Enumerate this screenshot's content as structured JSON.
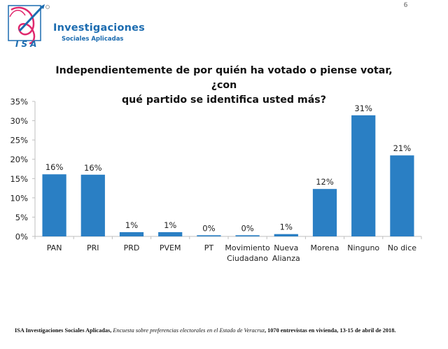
{
  "page_number": "6",
  "logo": {
    "abbreviation": "ISA",
    "name_line1": "Investigaciones",
    "name_line2": "Sociales Aplicadas",
    "registered_mark": "®"
  },
  "footer": {
    "org": "ISA Investigaciones Sociales Aplicadas,",
    "survey_title": "Encuesta sobre preferencias electorales en el Estado de Veracruz",
    "details": ", 1070 entrevistas en vivienda, 13-15 de abril de 2018."
  },
  "colors": {
    "bar": "#2a7fc4",
    "axis": "#bfbfbf",
    "brand_blue": "#1c6cb0",
    "brand_pink": "#e0286e"
  },
  "chart_data": {
    "type": "bar",
    "title": "Independientemente de por quién ha votado o piense votar, ¿con qué partido se identifica usted más?",
    "title_lines": [
      "Independientemente de por quién ha votado o piense votar, ¿con",
      "qué partido se identifica usted más?"
    ],
    "categories": [
      "PAN",
      "PRI",
      "PRD",
      "PVEM",
      "PT",
      "Movimiento Ciudadano",
      "Nueva Alianza",
      "Morena",
      "Ninguno",
      "No dice"
    ],
    "category_lines": [
      [
        "PAN"
      ],
      [
        "PRI"
      ],
      [
        "PRD"
      ],
      [
        "PVEM"
      ],
      [
        "PT"
      ],
      [
        "Movimiento",
        "Ciudadano"
      ],
      [
        "Nueva",
        "Alianza"
      ],
      [
        "Morena"
      ],
      [
        "Ninguno"
      ],
      [
        "No dice"
      ]
    ],
    "values": [
      16.1,
      16.0,
      1.1,
      1.1,
      0.3,
      0.3,
      0.6,
      12.3,
      31.4,
      21.0
    ],
    "data_labels": [
      "16%",
      "16%",
      "1%",
      "1%",
      "0%",
      "0%",
      "1%",
      "12%",
      "31%",
      "21%"
    ],
    "xlabel": "",
    "ylabel": "",
    "ylim": [
      0,
      35
    ],
    "yticks": [
      0,
      5,
      10,
      15,
      20,
      25,
      30,
      35
    ],
    "ytick_labels": [
      "0%",
      "5%",
      "10%",
      "15%",
      "20%",
      "25%",
      "30%",
      "35%"
    ],
    "grid": false,
    "legend": "none"
  }
}
